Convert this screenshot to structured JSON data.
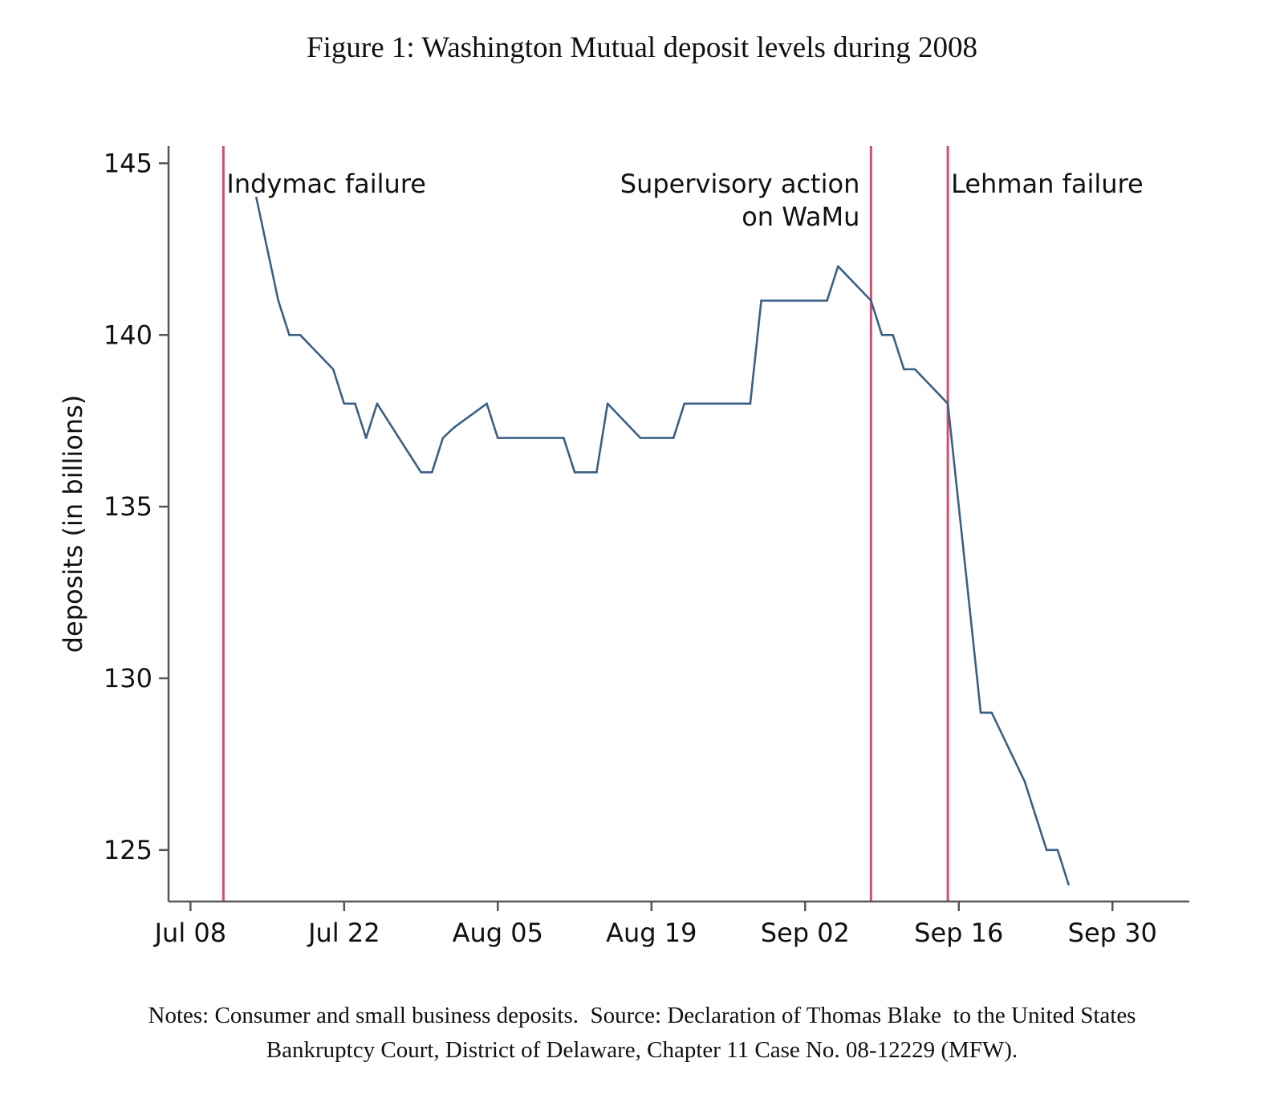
{
  "figure": {
    "title": "Figure 1: Washington Mutual deposit levels during 2008",
    "notes_line1": "Notes: Consumer and small business deposits.  Source: Declaration of Thomas Blake  to the United States",
    "notes_line2": "Bankruptcy Court, District of Delaware, Chapter 11 Case No. 08-12229 (MFW)."
  },
  "chart_data": {
    "type": "line",
    "title": "",
    "xlabel": "",
    "ylabel": "deposits (in billions)",
    "xlim": [
      "2008-07-06",
      "2008-10-07"
    ],
    "ylim": [
      123.5,
      145.5
    ],
    "yticks": [
      125,
      130,
      135,
      140,
      145
    ],
    "xticks": [
      {
        "date": "2008-07-08",
        "label": "Jul 08"
      },
      {
        "date": "2008-07-22",
        "label": "Jul 22"
      },
      {
        "date": "2008-08-05",
        "label": "Aug 05"
      },
      {
        "date": "2008-08-19",
        "label": "Aug 19"
      },
      {
        "date": "2008-09-02",
        "label": "Sep 02"
      },
      {
        "date": "2008-09-16",
        "label": "Sep 16"
      },
      {
        "date": "2008-09-30",
        "label": "Sep 30"
      }
    ],
    "grid": false,
    "series": [
      {
        "color": "#3c5f86",
        "points": [
          {
            "x": "2008-07-14",
            "y": 144.0
          },
          {
            "x": "2008-07-16",
            "y": 141.0
          },
          {
            "x": "2008-07-17",
            "y": 140.0
          },
          {
            "x": "2008-07-18",
            "y": 140.0
          },
          {
            "x": "2008-07-21",
            "y": 139.0
          },
          {
            "x": "2008-07-22",
            "y": 138.0
          },
          {
            "x": "2008-07-23",
            "y": 138.0
          },
          {
            "x": "2008-07-24",
            "y": 137.0
          },
          {
            "x": "2008-07-25",
            "y": 138.0
          },
          {
            "x": "2008-07-28",
            "y": 136.5
          },
          {
            "x": "2008-07-29",
            "y": 136.0
          },
          {
            "x": "2008-07-30",
            "y": 136.0
          },
          {
            "x": "2008-07-31",
            "y": 137.0
          },
          {
            "x": "2008-08-01",
            "y": 137.3
          },
          {
            "x": "2008-08-04",
            "y": 138.0
          },
          {
            "x": "2008-08-05",
            "y": 137.0
          },
          {
            "x": "2008-08-11",
            "y": 137.0
          },
          {
            "x": "2008-08-12",
            "y": 136.0
          },
          {
            "x": "2008-08-14",
            "y": 136.0
          },
          {
            "x": "2008-08-15",
            "y": 138.0
          },
          {
            "x": "2008-08-18",
            "y": 137.0
          },
          {
            "x": "2008-08-21",
            "y": 137.0
          },
          {
            "x": "2008-08-22",
            "y": 138.0
          },
          {
            "x": "2008-08-28",
            "y": 138.0
          },
          {
            "x": "2008-08-29",
            "y": 141.0
          },
          {
            "x": "2008-09-04",
            "y": 141.0
          },
          {
            "x": "2008-09-05",
            "y": 142.0
          },
          {
            "x": "2008-09-08",
            "y": 141.0
          },
          {
            "x": "2008-09-09",
            "y": 140.0
          },
          {
            "x": "2008-09-10",
            "y": 140.0
          },
          {
            "x": "2008-09-11",
            "y": 139.0
          },
          {
            "x": "2008-09-12",
            "y": 139.0
          },
          {
            "x": "2008-09-15",
            "y": 138.0
          },
          {
            "x": "2008-09-16",
            "y": 135.0
          },
          {
            "x": "2008-09-17",
            "y": 132.0
          },
          {
            "x": "2008-09-18",
            "y": 129.0
          },
          {
            "x": "2008-09-19",
            "y": 129.0
          },
          {
            "x": "2008-09-22",
            "y": 127.0
          },
          {
            "x": "2008-09-23",
            "y": 126.0
          },
          {
            "x": "2008-09-24",
            "y": 125.0
          },
          {
            "x": "2008-09-25",
            "y": 125.0
          },
          {
            "x": "2008-09-26",
            "y": 124.0
          }
        ]
      }
    ],
    "events": [
      {
        "date": "2008-07-11",
        "lines": [
          "Indymac failure"
        ],
        "anchor": "start"
      },
      {
        "date": "2008-09-08",
        "lines": [
          "Supervisory action",
          "on WaMu"
        ],
        "anchor": "end"
      },
      {
        "date": "2008-09-15",
        "lines": [
          "Lehman failure"
        ],
        "anchor": "start"
      }
    ],
    "event_line_color": "#d0506e"
  }
}
